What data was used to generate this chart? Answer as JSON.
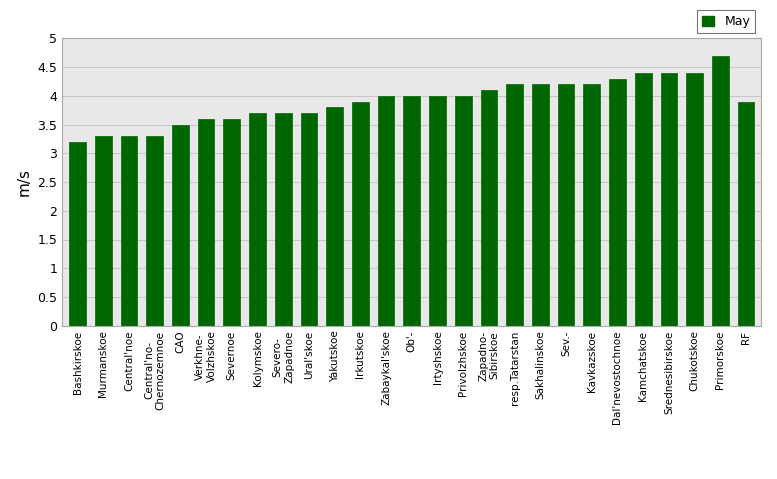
{
  "categories": [
    "Bashkirskoe",
    "Murmanskoe",
    "Central'noe",
    "Central'no-\nChernozemnoe",
    "CAO",
    "Verkhne-\nVolzhskoe",
    "Severnoe",
    "Kolymskoe",
    "Severo-\nZapadnoe",
    "Ural'skoe",
    "Yakutskoe",
    "Irkutskoe",
    "Zabaykal'skoe",
    "Ob'-",
    "Irtyshskoe",
    "Privolzhskoe",
    "Zapadno-\nSibirskoe",
    "resp.Tatarstan",
    "Sakhalinskoe",
    "Sev.-",
    "Kavkazskoe",
    "Dal'nevostochnoe",
    "Kamchatskoe",
    "Srednesibirskoe",
    "Chukotskoe",
    "Primorskoe",
    "RF"
  ],
  "values": [
    3.2,
    3.3,
    3.3,
    3.3,
    3.5,
    3.6,
    3.6,
    3.7,
    3.7,
    3.7,
    3.8,
    3.9,
    4.0,
    4.0,
    4.0,
    4.0,
    4.1,
    4.2,
    4.2,
    4.2,
    4.2,
    4.3,
    4.4,
    4.4,
    4.4,
    4.7,
    3.9
  ],
  "bar_color": "#006600",
  "ylabel": "m/s",
  "ylim": [
    0,
    5
  ],
  "yticks": [
    0,
    0.5,
    1.0,
    1.5,
    2.0,
    2.5,
    3.0,
    3.5,
    4.0,
    4.5,
    5.0
  ],
  "ytick_labels": [
    "0",
    "0.5",
    "1",
    "1.5",
    "2",
    "2.5",
    "3",
    "3.5",
    "4",
    "4.5",
    "5"
  ],
  "legend_label": "May",
  "legend_color": "#006600",
  "fig_bg_color": "#ffffff",
  "plot_bg_color": "#e8e8e8",
  "grid_color": "#c8c8c8",
  "bar_width": 0.65
}
